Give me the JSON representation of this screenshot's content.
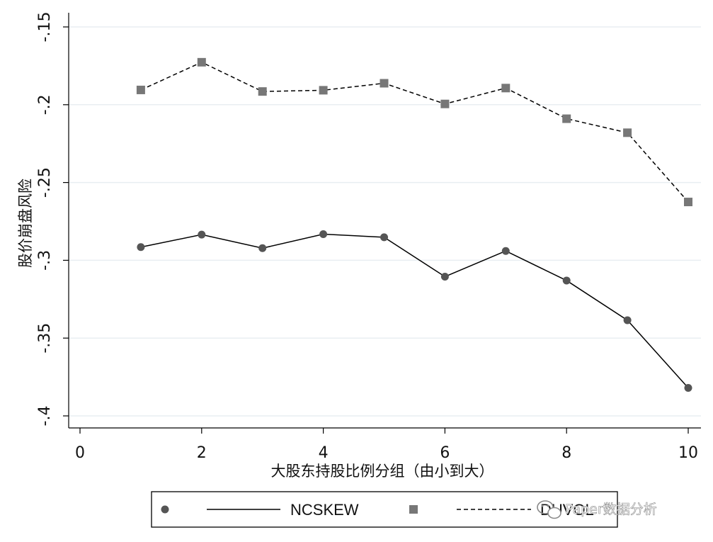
{
  "chart_data": {
    "type": "line",
    "title": "",
    "xlabel": "大股东持股比例分组（由小到大）",
    "ylabel": "股价崩盘风险",
    "xlim": [
      0,
      10
    ],
    "ylim": [
      -0.4,
      -0.15
    ],
    "x_ticks": [
      "0",
      "2",
      "4",
      "6",
      "8",
      "10"
    ],
    "y_ticks": [
      "-.4",
      "-.35",
      "-.3",
      "-.25",
      "-.2",
      "-.15"
    ],
    "grid": true,
    "legend_position": "bottom",
    "x": [
      1,
      2,
      3,
      4,
      5,
      6,
      7,
      8,
      9,
      10
    ],
    "series": [
      {
        "name": "NCSKEW",
        "values": [
          -0.2915,
          -0.2835,
          -0.2922,
          -0.2832,
          -0.2852,
          -0.3105,
          -0.294,
          -0.313,
          -0.3385,
          -0.382
        ],
        "color": "#555555",
        "marker": "circle",
        "line_style": "solid"
      },
      {
        "name": "DUVOL",
        "values": [
          -0.1905,
          -0.1727,
          -0.1915,
          -0.1907,
          -0.1862,
          -0.1995,
          -0.1893,
          -0.209,
          -0.218,
          -0.2625
        ],
        "color": "#777777",
        "marker": "square",
        "line_style": "dashed"
      }
    ]
  },
  "legend": {
    "items": [
      "NCSKEW",
      "DUVOL"
    ]
  },
  "watermark": {
    "text": "Paper数据分析",
    "icon": "wechat-icon"
  },
  "colors": {
    "grid": "#e8eef2",
    "axis": "#000000",
    "background": "#ffffff"
  }
}
